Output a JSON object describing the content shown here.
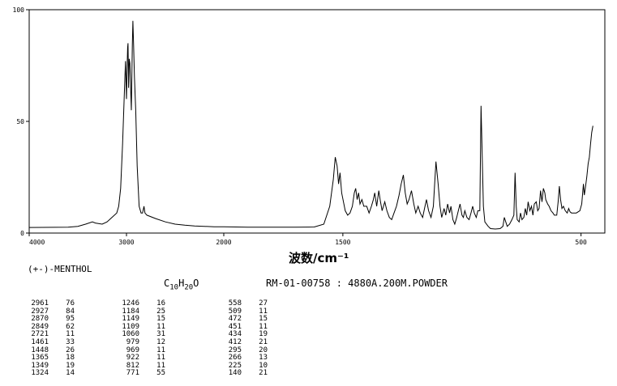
{
  "chart_data": {
    "type": "line",
    "xlabel": "波数/cm⁻¹",
    "ylabel": "",
    "xlim": [
      4000,
      400
    ],
    "ylim": [
      0,
      100
    ],
    "x_ticks": [
      4000,
      3000,
      2000,
      1500,
      500
    ],
    "x_tick_labels": [
      "4000",
      "3000",
      "2000",
      "1500",
      "500"
    ],
    "y_ticks": [
      0,
      50,
      100
    ],
    "y_tick_labels": [
      "0",
      "50",
      "100"
    ],
    "grid": false,
    "series": [
      {
        "points": [
          [
            4000,
            2.5
          ],
          [
            3600,
            2.6
          ],
          [
            3500,
            3.0
          ],
          [
            3420,
            4.0
          ],
          [
            3350,
            5.0
          ],
          [
            3320,
            4.5
          ],
          [
            3250,
            4.0
          ],
          [
            3200,
            5.0
          ],
          [
            3150,
            7.0
          ],
          [
            3100,
            9.0
          ],
          [
            3080,
            12.0
          ],
          [
            3060,
            20.0
          ],
          [
            3040,
            40.0
          ],
          [
            3020,
            65.0
          ],
          [
            3010,
            77.0
          ],
          [
            3000,
            60.0
          ],
          [
            2994,
            73.0
          ],
          [
            2988,
            83.0
          ],
          [
            2984,
            85.0
          ],
          [
            2978,
            65.0
          ],
          [
            2972,
            78.0
          ],
          [
            2965,
            76.0
          ],
          [
            2950,
            55.0
          ],
          [
            2940,
            84.0
          ],
          [
            2934,
            95.0
          ],
          [
            2927,
            84.0
          ],
          [
            2918,
            70.0
          ],
          [
            2905,
            55.0
          ],
          [
            2890,
            30.0
          ],
          [
            2870,
            12.0
          ],
          [
            2850,
            9.0
          ],
          [
            2835,
            9.0
          ],
          [
            2820,
            12.0
          ],
          [
            2810,
            9.0
          ],
          [
            2790,
            8.0
          ],
          [
            2700,
            6.5
          ],
          [
            2600,
            5.0
          ],
          [
            2500,
            4.0
          ],
          [
            2400,
            3.5
          ],
          [
            2300,
            3.2
          ],
          [
            2200,
            3.0
          ],
          [
            2100,
            2.8
          ],
          [
            2000,
            2.8
          ],
          [
            1900,
            2.6
          ],
          [
            1800,
            2.6
          ],
          [
            1700,
            2.6
          ],
          [
            1620,
            2.7
          ],
          [
            1580,
            4.0
          ],
          [
            1555,
            12.0
          ],
          [
            1540,
            24.0
          ],
          [
            1532,
            34.0
          ],
          [
            1524,
            30.0
          ],
          [
            1518,
            22.0
          ],
          [
            1512,
            27.0
          ],
          [
            1505,
            18.0
          ],
          [
            1490,
            10.0
          ],
          [
            1480,
            8.0
          ],
          [
            1470,
            9.0
          ],
          [
            1460,
            12.0
          ],
          [
            1452,
            18.0
          ],
          [
            1446,
            20.0
          ],
          [
            1440,
            15.0
          ],
          [
            1434,
            18.0
          ],
          [
            1428,
            13.0
          ],
          [
            1420,
            15.0
          ],
          [
            1412,
            12.0
          ],
          [
            1400,
            12.0
          ],
          [
            1390,
            9.0
          ],
          [
            1380,
            12.0
          ],
          [
            1372,
            15.0
          ],
          [
            1366,
            18.0
          ],
          [
            1358,
            12.0
          ],
          [
            1349,
            19.0
          ],
          [
            1342,
            14.0
          ],
          [
            1335,
            10.0
          ],
          [
            1324,
            14.0
          ],
          [
            1315,
            10.0
          ],
          [
            1305,
            7.0
          ],
          [
            1295,
            6.0
          ],
          [
            1285,
            9.0
          ],
          [
            1275,
            12.0
          ],
          [
            1264,
            17.0
          ],
          [
            1255,
            22.0
          ],
          [
            1246,
            26.0
          ],
          [
            1238,
            18.0
          ],
          [
            1230,
            13.0
          ],
          [
            1222,
            15.0
          ],
          [
            1212,
            19.0
          ],
          [
            1202,
            13.0
          ],
          [
            1194,
            9.0
          ],
          [
            1184,
            12.0
          ],
          [
            1175,
            9.0
          ],
          [
            1165,
            7.0
          ],
          [
            1157,
            11.0
          ],
          [
            1149,
            15.0
          ],
          [
            1140,
            10.0
          ],
          [
            1130,
            7.0
          ],
          [
            1120,
            12.0
          ],
          [
            1109,
            32.0
          ],
          [
            1100,
            22.0
          ],
          [
            1092,
            12.0
          ],
          [
            1085,
            7.0
          ],
          [
            1075,
            11.0
          ],
          [
            1068,
            8.0
          ],
          [
            1060,
            13.0
          ],
          [
            1052,
            9.0
          ],
          [
            1046,
            12.0
          ],
          [
            1038,
            6.0
          ],
          [
            1030,
            4.0
          ],
          [
            1022,
            7.0
          ],
          [
            1015,
            10.0
          ],
          [
            1008,
            13.0
          ],
          [
            1000,
            8.0
          ],
          [
            994,
            7.0
          ],
          [
            988,
            10.0
          ],
          [
            979,
            7.0
          ],
          [
            970,
            6.0
          ],
          [
            962,
            9.0
          ],
          [
            955,
            12.0
          ],
          [
            948,
            9.0
          ],
          [
            940,
            7.0
          ],
          [
            933,
            10.0
          ],
          [
            925,
            10.0
          ],
          [
            920,
            57.0
          ],
          [
            916,
            40.0
          ],
          [
            910,
            12.0
          ],
          [
            904,
            5.0
          ],
          [
            890,
            3.0
          ],
          [
            880,
            2.0
          ],
          [
            860,
            1.8
          ],
          [
            840,
            2.0
          ],
          [
            828,
            3.0
          ],
          [
            822,
            7.0
          ],
          [
            816,
            5.0
          ],
          [
            810,
            3.0
          ],
          [
            800,
            4.0
          ],
          [
            790,
            6.0
          ],
          [
            782,
            8.0
          ],
          [
            777,
            27.0
          ],
          [
            772,
            12.0
          ],
          [
            768,
            6.0
          ],
          [
            760,
            5.0
          ],
          [
            754,
            9.0
          ],
          [
            748,
            6.0
          ],
          [
            740,
            7.0
          ],
          [
            734,
            11.0
          ],
          [
            728,
            8.0
          ],
          [
            722,
            14.0
          ],
          [
            715,
            10.0
          ],
          [
            708,
            12.0
          ],
          [
            702,
            8.0
          ],
          [
            696,
            13.0
          ],
          [
            688,
            14.0
          ],
          [
            682,
            10.0
          ],
          [
            676,
            11.0
          ],
          [
            670,
            19.0
          ],
          [
            664,
            14.0
          ],
          [
            658,
            20.0
          ],
          [
            652,
            18.0
          ],
          [
            648,
            15.0
          ],
          [
            640,
            13.0
          ],
          [
            634,
            12.0
          ],
          [
            626,
            10.0
          ],
          [
            618,
            9.0
          ],
          [
            612,
            8.0
          ],
          [
            602,
            8.0
          ],
          [
            596,
            14.0
          ],
          [
            591,
            21.0
          ],
          [
            586,
            15.0
          ],
          [
            580,
            11.0
          ],
          [
            574,
            12.0
          ],
          [
            566,
            10.0
          ],
          [
            558,
            9.0
          ],
          [
            552,
            11.0
          ],
          [
            546,
            9.5
          ],
          [
            540,
            9.0
          ],
          [
            520,
            9.0
          ],
          [
            505,
            10.0
          ],
          [
            497,
            13.0
          ],
          [
            490,
            22.0
          ],
          [
            486,
            17.0
          ],
          [
            482,
            20.0
          ],
          [
            476,
            25.0
          ],
          [
            470,
            31.0
          ],
          [
            465,
            34.0
          ],
          [
            460,
            40.0
          ],
          [
            455,
            45.0
          ],
          [
            450,
            48.0
          ]
        ]
      }
    ]
  },
  "header": {
    "compound": "(+-)-MENTHOL",
    "formula": {
      "c": "C",
      "c_sub": "10",
      "h": "H",
      "h_sub": "20",
      "o": "O"
    },
    "sample_info": "RM-01-00758 : 4880A.200M.POWDER"
  },
  "peak_table": [
    [
      {
        "wn": "2961",
        "i": "76"
      },
      {
        "wn": "2927",
        "i": "84"
      },
      {
        "wn": "2870",
        "i": "95"
      },
      {
        "wn": "2849",
        "i": "62"
      },
      {
        "wn": "2721",
        "i": "11"
      },
      {
        "wn": "1461",
        "i": "33"
      },
      {
        "wn": "1448",
        "i": "26"
      },
      {
        "wn": "1365",
        "i": "18"
      },
      {
        "wn": "1349",
        "i": "19"
      },
      {
        "wn": "1324",
        "i": "14"
      }
    ],
    [
      {
        "wn": "1246",
        "i": "16"
      },
      {
        "wn": "1184",
        "i": "25"
      },
      {
        "wn": "1149",
        "i": "15"
      },
      {
        "wn": "1109",
        "i": "11"
      },
      {
        "wn": "1060",
        "i": "31"
      },
      {
        "wn": "979",
        "i": "12"
      },
      {
        "wn": "969",
        "i": "11"
      },
      {
        "wn": "922",
        "i": "11"
      },
      {
        "wn": "812",
        "i": "11"
      },
      {
        "wn": "771",
        "i": "55"
      }
    ],
    [
      {
        "wn": "558",
        "i": "27"
      },
      {
        "wn": "509",
        "i": "11"
      },
      {
        "wn": "472",
        "i": "15"
      },
      {
        "wn": "451",
        "i": "11"
      },
      {
        "wn": "434",
        "i": "19"
      },
      {
        "wn": "412",
        "i": "21"
      },
      {
        "wn": "295",
        "i": "20"
      },
      {
        "wn": "266",
        "i": "13"
      },
      {
        "wn": "225",
        "i": "10"
      },
      {
        "wn": "140",
        "i": "21"
      }
    ]
  ]
}
